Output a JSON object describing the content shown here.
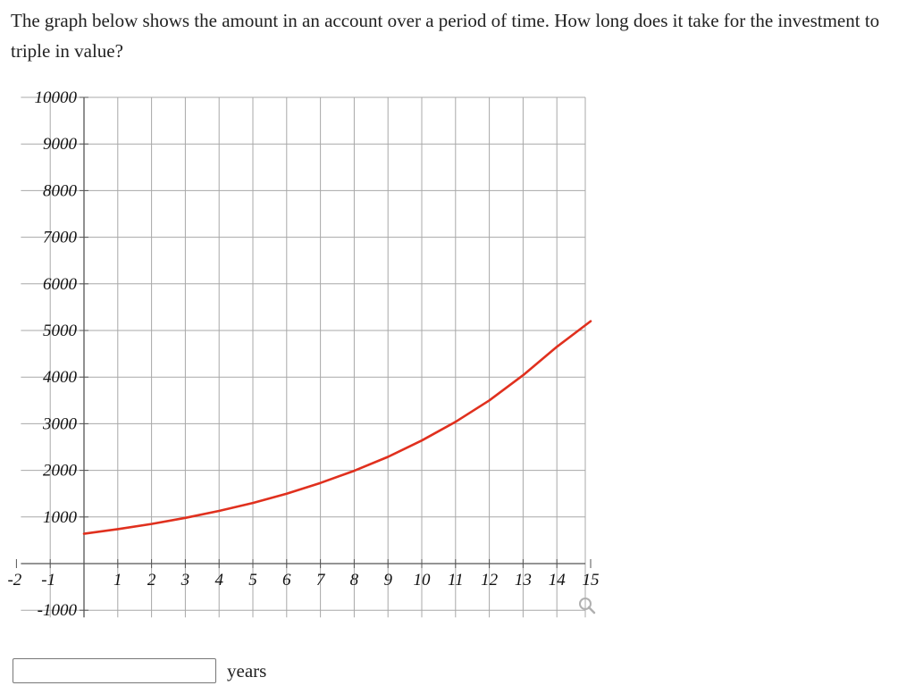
{
  "question": {
    "text": "The graph below shows the amount in an account over a period of time. How long does it take for the investment to triple in value?"
  },
  "answer": {
    "value": "",
    "units": "years"
  },
  "colors": {
    "curve": "#e0301e",
    "grid": "#a8a8a8",
    "axis": "#555555",
    "zoom_icon": "#b0b0b0"
  },
  "icons": {
    "zoom": "magnifier-icon"
  },
  "chart_data": {
    "type": "line",
    "title": "",
    "xlabel": "",
    "ylabel": "",
    "xlim": [
      -2,
      15
    ],
    "ylim": [
      -1000,
      10000
    ],
    "grid": true,
    "x_grid_step": 1,
    "y_grid_step": 1000,
    "x_tick_labels": [
      "-2",
      "-1",
      "1",
      "2",
      "3",
      "4",
      "5",
      "6",
      "7",
      "8",
      "9",
      "10",
      "11",
      "12",
      "13",
      "14",
      "15"
    ],
    "y_tick_labels": [
      "10000",
      "9000",
      "8000",
      "7000",
      "6000",
      "5000",
      "4000",
      "3000",
      "2000",
      "1000",
      "-1000"
    ],
    "series": [
      {
        "x": [
          0,
          1,
          2,
          3,
          4,
          5,
          6,
          7,
          8,
          9,
          10,
          11,
          12,
          13,
          14,
          15
        ],
        "y": [
          640,
          740,
          850,
          980,
          1130,
          1300,
          1500,
          1730,
          1990,
          2290,
          2640,
          3040,
          3500,
          4040,
          4650,
          5200
        ]
      }
    ]
  }
}
